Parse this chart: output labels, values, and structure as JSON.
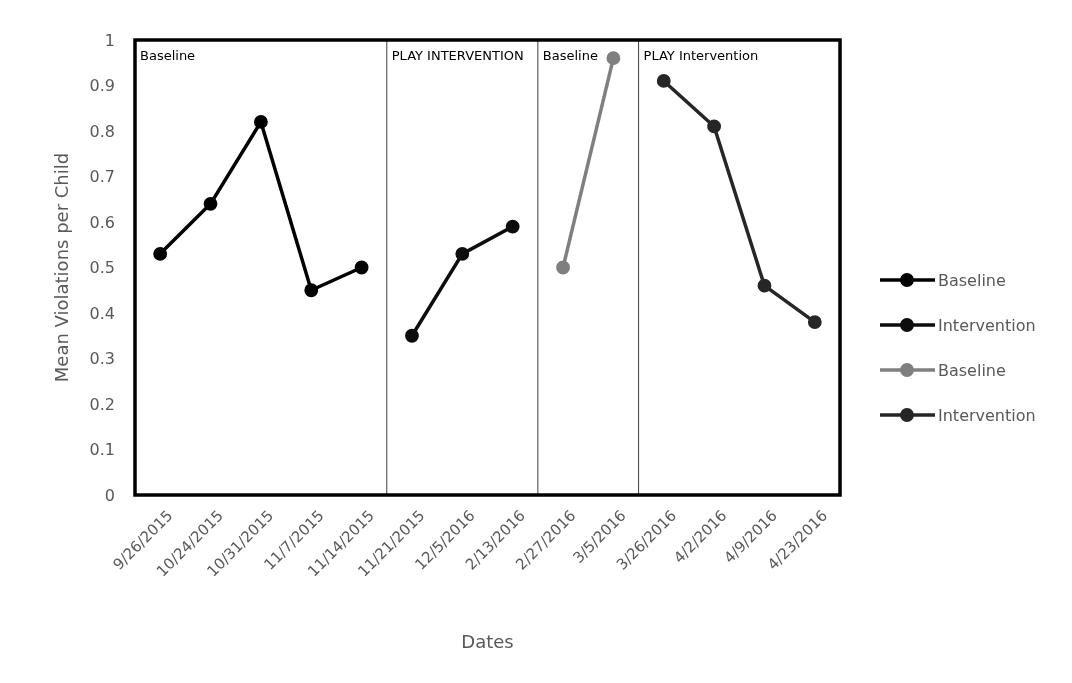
{
  "chart_data": {
    "type": "line",
    "xlabel": "Dates",
    "ylabel": "Mean Violations per Child",
    "categories": [
      "9/26/2015",
      "10/24/2015",
      "10/31/2015",
      "11/7/2015",
      "11/14/2015",
      "11/21/2015",
      "12/5/2016",
      "2/13/2016",
      "2/27/2016",
      "3/5/2016",
      "3/26/2016",
      "4/2/2016",
      "4/9/2016",
      "4/23/2016"
    ],
    "series": [
      {
        "name": "Baseline",
        "color": "#000000",
        "values": [
          0.53,
          0.64,
          0.82,
          0.45,
          0.5,
          null,
          null,
          null,
          null,
          null,
          null,
          null,
          null,
          null
        ]
      },
      {
        "name": "Intervention",
        "color": "#0d0d0d",
        "values": [
          null,
          null,
          null,
          null,
          null,
          0.35,
          0.53,
          0.59,
          null,
          null,
          null,
          null,
          null,
          null
        ]
      },
      {
        "name": "Baseline",
        "color": "#7f7f7f",
        "values": [
          null,
          null,
          null,
          null,
          null,
          null,
          null,
          null,
          0.5,
          0.96,
          null,
          null,
          null,
          null
        ]
      },
      {
        "name": "Intervention",
        "color": "#262626",
        "values": [
          null,
          null,
          null,
          null,
          null,
          null,
          null,
          null,
          null,
          null,
          0.91,
          0.81,
          0.46,
          0.38
        ]
      }
    ],
    "ylim": [
      0,
      1
    ],
    "yticks": [
      0,
      0.1,
      0.2,
      0.3,
      0.4,
      0.5,
      0.6,
      0.7,
      0.8,
      0.9,
      1
    ],
    "annotations": [
      "Baseline",
      "PLAY INTERVENTION",
      "Baseline",
      "PLAY Intervention"
    ],
    "legend": "right",
    "marker": "circle",
    "line_style": "solid",
    "grid": false
  }
}
